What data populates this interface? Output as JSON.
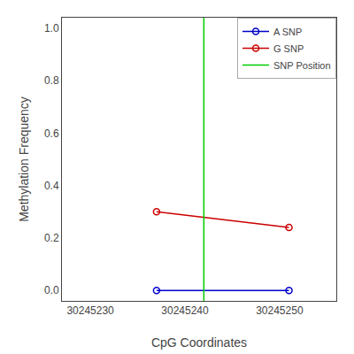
{
  "chart_data": {
    "type": "line",
    "xlabel": "CpG Coordinates",
    "ylabel": "Methylation Frequency",
    "x": [
      30245237,
      30245251
    ],
    "series": [
      {
        "name": "A SNP",
        "color": "#0000cc",
        "marker": "circle-open",
        "values": [
          0.0,
          0.0
        ]
      },
      {
        "name": "G SNP",
        "color": "#cc0000",
        "marker": "circle-open",
        "values": [
          0.3,
          0.24
        ]
      },
      {
        "name": "SNP Position",
        "type": "vline",
        "color": "#00cc00",
        "x": 30245242
      }
    ],
    "xlim": [
      30245227,
      30245256
    ],
    "xticks": [
      30245230,
      30245240,
      30245250
    ],
    "ylim": [
      -0.04,
      1.04
    ],
    "yticks": [
      {
        "value": 0.0,
        "label": "0.0"
      },
      0.2,
      0.4,
      0.6,
      0.8,
      {
        "value": 1.0,
        "label": "1.0"
      }
    ],
    "grid": false,
    "legend": "upper right"
  }
}
